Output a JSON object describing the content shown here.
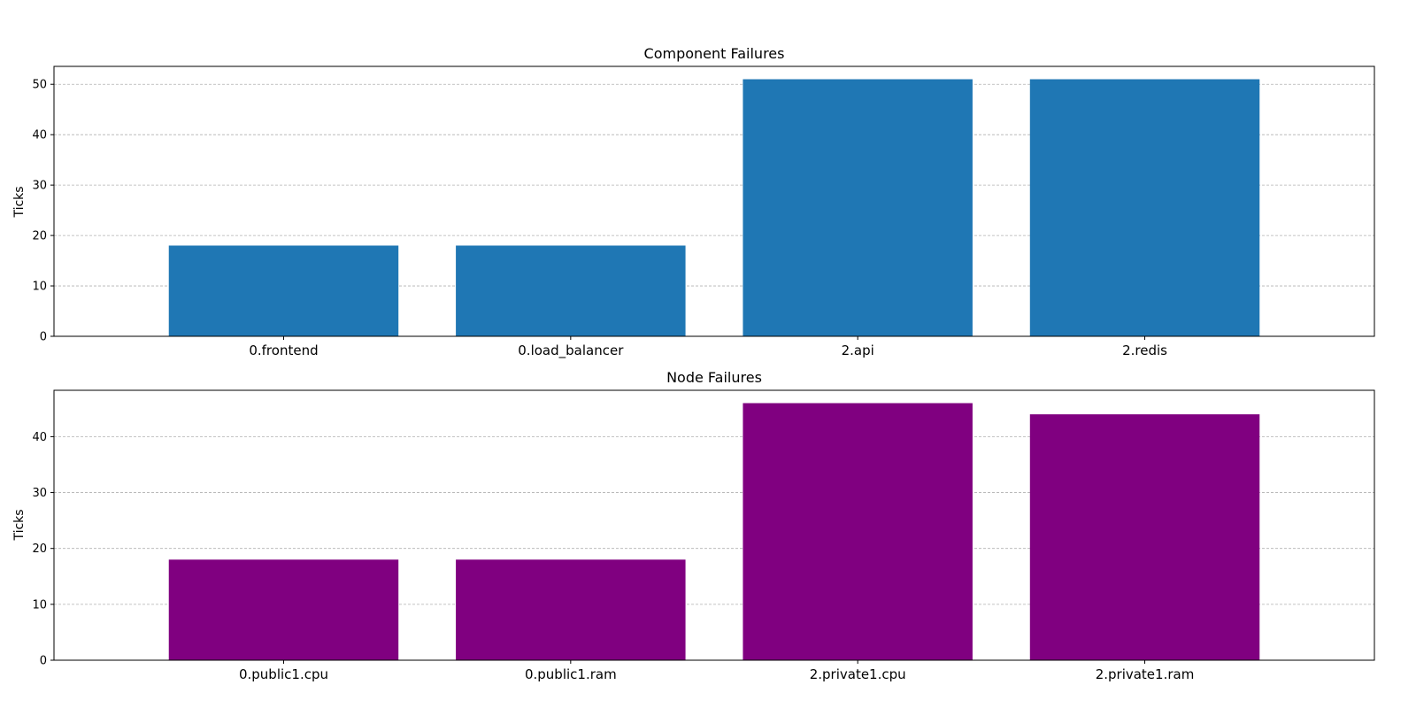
{
  "chart_data": [
    {
      "type": "bar",
      "title": "Component Failures",
      "xlabel": "",
      "ylabel": "Ticks",
      "categories": [
        "0.frontend",
        "0.load_balancer",
        "2.api",
        "2.redis"
      ],
      "values": [
        18,
        18,
        51,
        51
      ],
      "ylim": [
        0,
        53.55
      ],
      "yticks": [
        0,
        10,
        20,
        30,
        40,
        50
      ],
      "color": "#1f77b4",
      "grid": "y-dashed",
      "legend": "none"
    },
    {
      "type": "bar",
      "title": "Node Failures",
      "xlabel": "",
      "ylabel": "Ticks",
      "categories": [
        "0.public1.cpu",
        "0.public1.ram",
        "2.private1.cpu",
        "2.private1.ram"
      ],
      "values": [
        18,
        18,
        46,
        44
      ],
      "ylim": [
        0,
        48.3
      ],
      "yticks": [
        0,
        10,
        20,
        30,
        40
      ],
      "color": "#800080",
      "grid": "y-dashed",
      "legend": "none"
    }
  ]
}
